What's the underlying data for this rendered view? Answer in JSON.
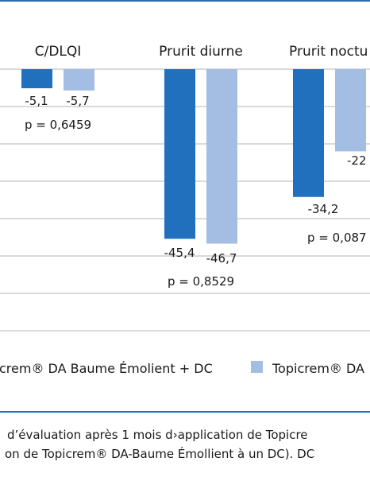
{
  "colors": {
    "frame": "#2a6db0",
    "series1": "#2170bd",
    "series2": "#a3bde3",
    "grid": "#b5b5b5"
  },
  "chart_data": {
    "type": "bar",
    "categories": [
      "C/DLQI",
      "Prurit diurne",
      "Prurit noctu"
    ],
    "series": [
      {
        "name": "crem® DA Baume Émolient + DC",
        "values": [
          -5.1,
          -45.4,
          -34.2
        ],
        "labels": [
          "-5,1",
          "-45,4",
          "-34,2"
        ]
      },
      {
        "name": "Topicrem® DA",
        "values": [
          -5.7,
          -46.7,
          -22
        ],
        "labels": [
          "-5,7",
          "-46,7",
          "-22"
        ]
      }
    ],
    "pvalues": [
      "p = 0,6459",
      "p = 0,8529",
      "p = 0,087"
    ],
    "ylim": [
      -70,
      0
    ],
    "grid": true,
    "legend_position": "bottom"
  },
  "captions": {
    "line1": "d’évaluation après 1 mois d›application de Topicre",
    "line2": "on de Topicrem® DA-Baume Émollient à un DC). DC"
  }
}
